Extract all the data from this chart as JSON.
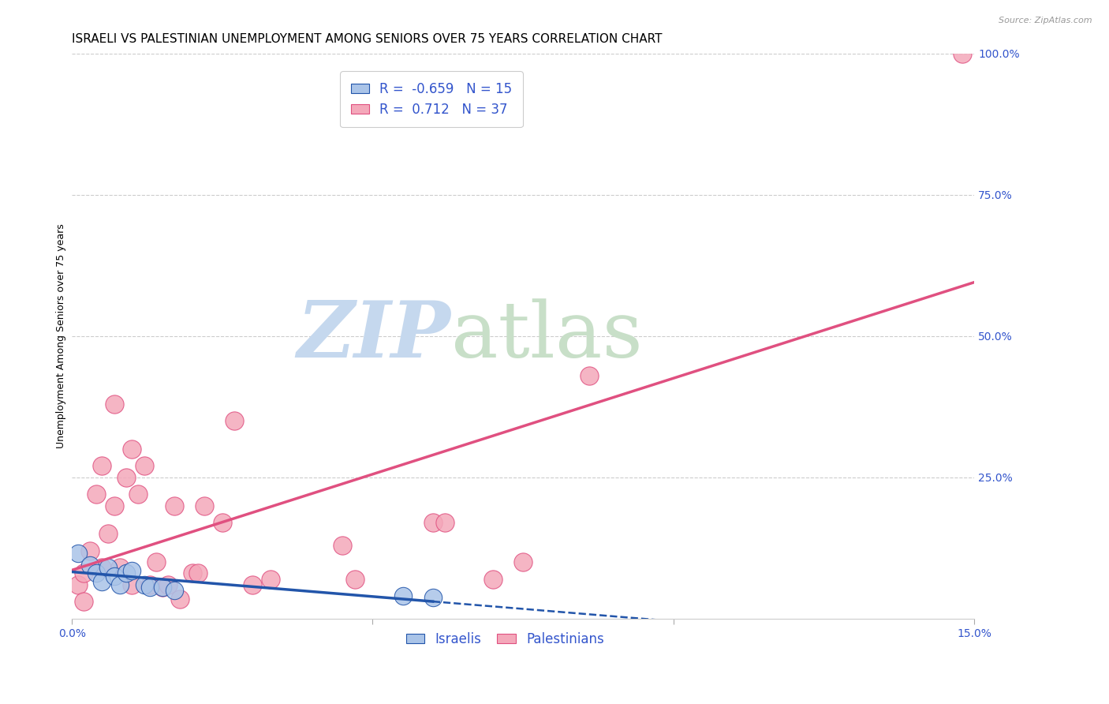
{
  "title": "ISRAELI VS PALESTINIAN UNEMPLOYMENT AMONG SENIORS OVER 75 YEARS CORRELATION CHART",
  "source": "Source: ZipAtlas.com",
  "ylabel": "Unemployment Among Seniors over 75 years",
  "x_min": 0.0,
  "x_max": 0.15,
  "y_min": 0.0,
  "y_max": 1.0,
  "x_ticks": [
    0.0,
    0.05,
    0.1,
    0.15
  ],
  "y_ticks_right": [
    0.0,
    0.25,
    0.5,
    0.75,
    1.0
  ],
  "y_tick_labels_right": [
    "",
    "25.0%",
    "50.0%",
    "75.0%",
    "100.0%"
  ],
  "israeli_R": -0.659,
  "israeli_N": 15,
  "palestinian_R": 0.712,
  "palestinian_N": 37,
  "israeli_color": "#aac4e8",
  "palestinian_color": "#f4a8ba",
  "israeli_line_color": "#2255aa",
  "palestinian_line_color": "#e05080",
  "watermark_zip": "ZIP",
  "watermark_atlas": "atlas",
  "watermark_color_zip": "#c5d8ee",
  "watermark_color_atlas": "#c8dfc8",
  "israeli_x": [
    0.001,
    0.003,
    0.004,
    0.005,
    0.006,
    0.007,
    0.008,
    0.009,
    0.01,
    0.012,
    0.013,
    0.015,
    0.017,
    0.055,
    0.06
  ],
  "israeli_y": [
    0.115,
    0.095,
    0.08,
    0.065,
    0.09,
    0.075,
    0.06,
    0.08,
    0.085,
    0.06,
    0.055,
    0.055,
    0.05,
    0.04,
    0.038
  ],
  "palestinian_x": [
    0.001,
    0.002,
    0.002,
    0.003,
    0.004,
    0.005,
    0.005,
    0.006,
    0.007,
    0.007,
    0.008,
    0.009,
    0.01,
    0.01,
    0.011,
    0.012,
    0.013,
    0.014,
    0.015,
    0.016,
    0.017,
    0.018,
    0.02,
    0.021,
    0.022,
    0.025,
    0.027,
    0.03,
    0.033,
    0.045,
    0.047,
    0.06,
    0.062,
    0.07,
    0.075,
    0.086,
    0.148
  ],
  "palestinian_y": [
    0.06,
    0.03,
    0.08,
    0.12,
    0.22,
    0.27,
    0.09,
    0.15,
    0.2,
    0.38,
    0.09,
    0.25,
    0.3,
    0.06,
    0.22,
    0.27,
    0.06,
    0.1,
    0.055,
    0.06,
    0.2,
    0.035,
    0.08,
    0.08,
    0.2,
    0.17,
    0.35,
    0.06,
    0.07,
    0.13,
    0.07,
    0.17,
    0.17,
    0.07,
    0.1,
    0.43,
    1.0
  ],
  "title_fontsize": 11,
  "axis_label_fontsize": 9,
  "tick_fontsize": 10,
  "legend_fontsize": 12
}
